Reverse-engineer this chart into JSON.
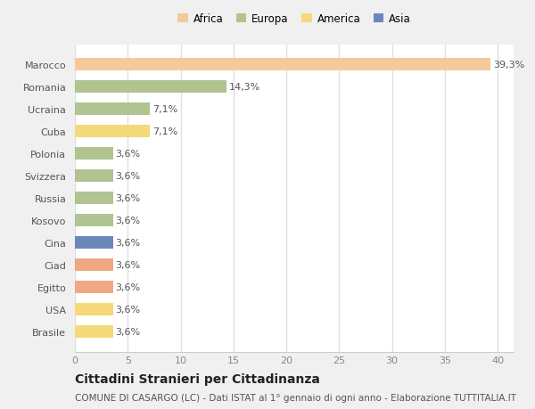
{
  "categories": [
    "Brasile",
    "USA",
    "Egitto",
    "Ciad",
    "Cina",
    "Kosovo",
    "Russia",
    "Svizzera",
    "Polonia",
    "Cuba",
    "Ucraina",
    "Romania",
    "Marocco"
  ],
  "values": [
    3.6,
    3.6,
    3.6,
    3.6,
    3.6,
    3.6,
    3.6,
    3.6,
    3.6,
    7.1,
    7.1,
    14.3,
    39.3
  ],
  "colors": [
    "#f5d97a",
    "#f5d97a",
    "#f0a882",
    "#f0a882",
    "#6e87bb",
    "#afc490",
    "#afc490",
    "#afc490",
    "#afc490",
    "#f5d97a",
    "#afc490",
    "#afc490",
    "#f5c99a"
  ],
  "labels": [
    "3,6%",
    "3,6%",
    "3,6%",
    "3,6%",
    "3,6%",
    "3,6%",
    "3,6%",
    "3,6%",
    "3,6%",
    "7,1%",
    "7,1%",
    "14,3%",
    "39,3%"
  ],
  "legend": [
    {
      "label": "Africa",
      "color": "#f5c99a"
    },
    {
      "label": "Europa",
      "color": "#afc490"
    },
    {
      "label": "America",
      "color": "#f5d97a"
    },
    {
      "label": "Asia",
      "color": "#6e87bb"
    }
  ],
  "xlim": [
    0,
    41.5
  ],
  "xticks": [
    0,
    5,
    10,
    15,
    20,
    25,
    30,
    35,
    40
  ],
  "title": "Cittadini Stranieri per Cittadinanza",
  "subtitle": "COMUNE DI CASARGO (LC) - Dati ISTAT al 1° gennaio di ogni anno - Elaborazione TUTTITALIA.IT",
  "fig_bg_color": "#f0f0f0",
  "plot_bg_color": "#ffffff",
  "grid_color": "#e0e0e0",
  "text_color": "#555555",
  "label_fontsize": 8,
  "tick_fontsize": 8,
  "title_fontsize": 10,
  "subtitle_fontsize": 7.5,
  "legend_fontsize": 8.5
}
